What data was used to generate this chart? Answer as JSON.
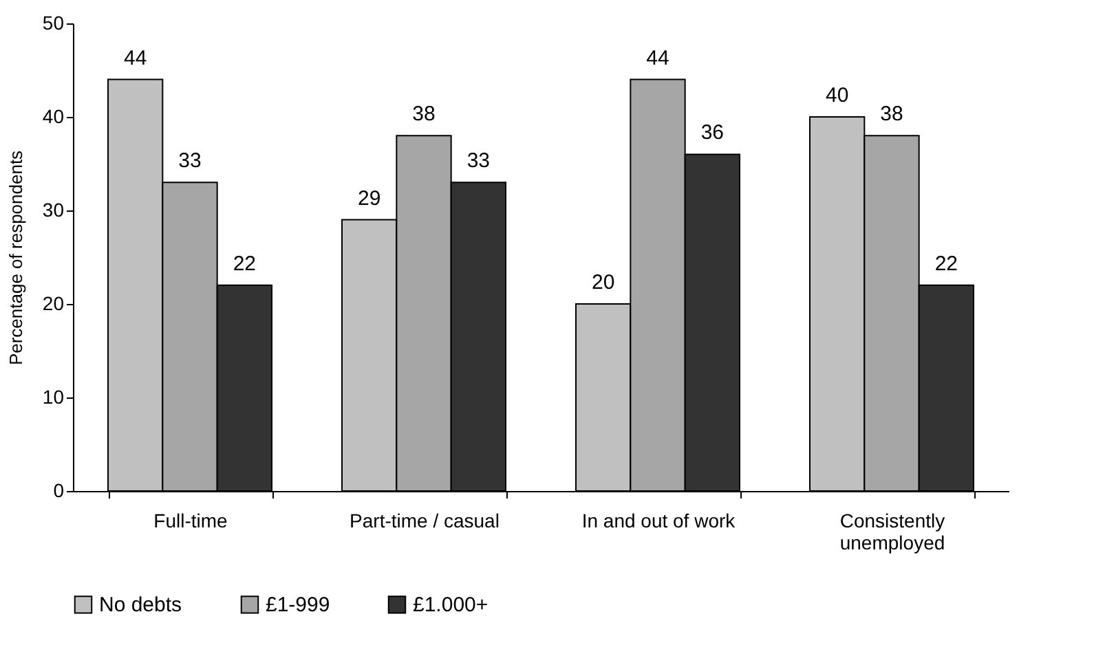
{
  "chart_data": {
    "type": "bar",
    "ylabel": "Percentage of respondents",
    "categories": [
      "Full-time",
      "Part-time / casual",
      "In and out of work",
      "Consistently unemployed"
    ],
    "series": [
      {
        "name": "No debts",
        "color": "#c0c0c0",
        "values": [
          44,
          29,
          20,
          40
        ]
      },
      {
        "name": "£1-999",
        "color": "#a6a6a6",
        "values": [
          33,
          38,
          44,
          38
        ]
      },
      {
        "name": "£1.000+",
        "color": "#333333",
        "values": [
          22,
          33,
          36,
          22
        ]
      }
    ],
    "ylim": [
      0,
      50
    ],
    "yticks": [
      0,
      10,
      20,
      30,
      40,
      50
    ],
    "grid": false,
    "legend": "bottom",
    "data_labels": true
  }
}
